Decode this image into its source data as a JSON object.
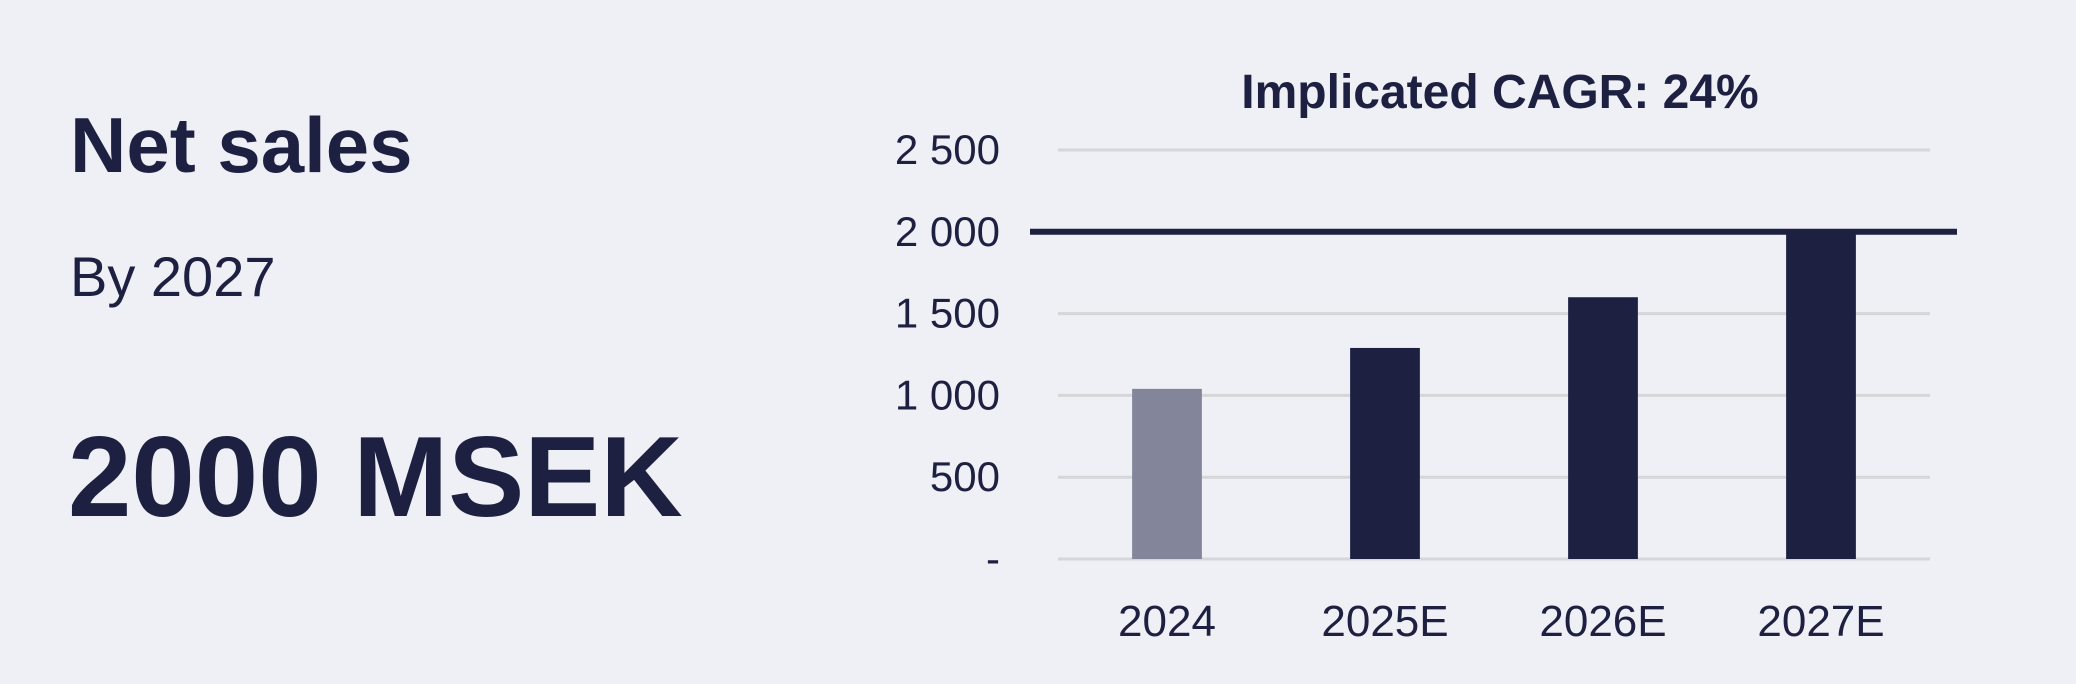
{
  "panel": {
    "title": "Net sales",
    "subtitle": "By 2027",
    "headline": "2000 MSEK"
  },
  "chart_data": {
    "type": "bar",
    "title": "Implicated CAGR: 24%",
    "categories": [
      "2024",
      "2025E",
      "2026E",
      "2027E"
    ],
    "values": [
      1040,
      1290,
      1600,
      2000
    ],
    "colors": [
      "#83869a",
      "#1e2042",
      "#1e2042",
      "#1e2042"
    ],
    "ylim": [
      0,
      2500
    ],
    "yticks": [
      {
        "value": 0,
        "label": "-"
      },
      500,
      {
        "value": 1000,
        "label": "1 000"
      },
      {
        "value": 1500,
        "label": "1 500"
      },
      {
        "value": 2000,
        "label": "2 000"
      },
      {
        "value": 2500,
        "label": "2 500"
      }
    ],
    "grid": true,
    "target_line": 2000
  }
}
